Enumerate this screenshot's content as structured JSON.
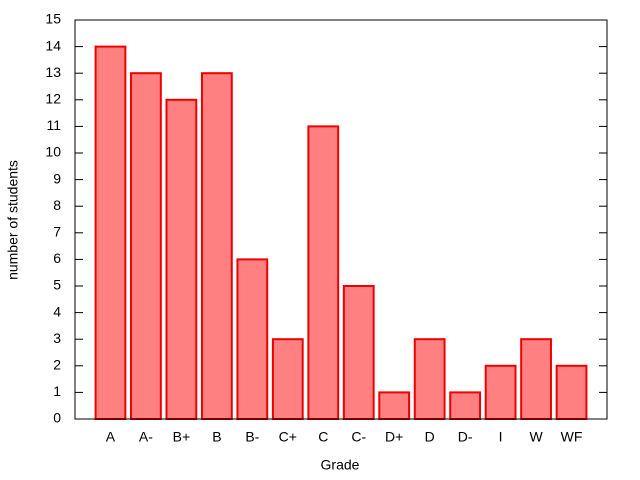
{
  "chart_data": {
    "type": "bar",
    "x_label": "Grade",
    "y_label": "number of students",
    "categories": [
      "A",
      "A-",
      "B+",
      "B",
      "B-",
      "C+",
      "C",
      "C-",
      "D+",
      "D",
      "D-",
      "I",
      "W",
      "WF"
    ],
    "values": [
      14,
      13,
      12,
      13,
      6,
      3,
      11,
      5,
      1,
      3,
      1,
      2,
      3,
      2
    ],
    "color": "#ff8080",
    "edge_color": "#ee0000",
    "ylim": [
      0,
      15
    ],
    "yticks": [
      0,
      1,
      2,
      3,
      4,
      5,
      6,
      7,
      8,
      9,
      10,
      11,
      12,
      13,
      14,
      15
    ],
    "grid": false
  }
}
